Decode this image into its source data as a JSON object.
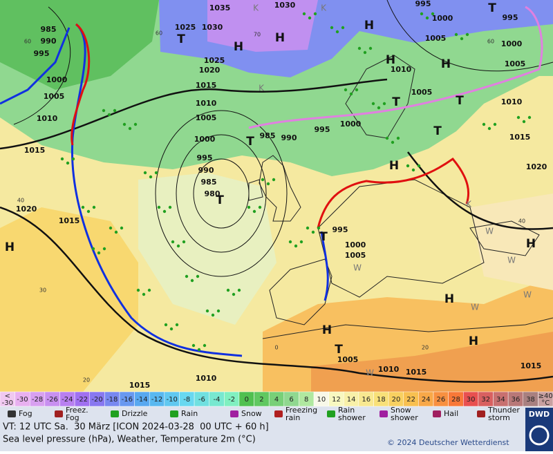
{
  "map": {
    "pressure_labels": [
      1035,
      1030,
      995,
      1025,
      1030,
      1000,
      995,
      985,
      990,
      995,
      1005,
      1000,
      1025,
      1020,
      1010,
      1005,
      1000,
      1015,
      1005,
      1005,
      1010,
      1010,
      1010,
      1005,
      995,
      1000,
      1015,
      985,
      990,
      1015,
      1000,
      995,
      1020,
      990,
      985,
      980,
      1020,
      1015,
      995,
      1000,
      1005,
      1005,
      1010,
      1015,
      1015,
      1015,
      1010
    ],
    "temperature_labels": [
      60,
      70,
      60,
      60,
      40,
      30,
      20,
      40,
      20,
      0
    ],
    "high_labels": [
      "H",
      "H",
      "H",
      "H",
      "H",
      "H",
      "H",
      "H",
      "H",
      "H",
      "H"
    ],
    "low_labels": [
      "T",
      "T",
      "T",
      "T",
      "T",
      "T",
      "T",
      "T",
      "T"
    ],
    "cold_labels": [
      "K",
      "K",
      "K",
      "K"
    ],
    "warm_labels": [
      "W",
      "W",
      "W",
      "W",
      "W",
      "W"
    ]
  },
  "color_scale": {
    "below": {
      "symbol": "<",
      "value": -30
    },
    "values": [
      -30,
      -28,
      -26,
      -24,
      -22,
      -20,
      -18,
      -16,
      -14,
      -12,
      -10,
      -8,
      -6,
      -4,
      -2,
      0,
      2,
      4,
      6,
      8,
      10,
      12,
      14,
      16,
      18,
      20,
      22,
      24,
      26,
      28,
      30,
      32,
      34,
      36,
      38
    ],
    "above": {
      "symbol": "≥40",
      "unit": "°C"
    },
    "colors": [
      "#f0c8f0",
      "#e8b0f0",
      "#d8a0f0",
      "#c890f0",
      "#b880f0",
      "#a070f0",
      "#8878f0",
      "#7888f0",
      "#6898f0",
      "#58a8f0",
      "#58b8f0",
      "#60c8f0",
      "#68d8f0",
      "#70e0e0",
      "#78e8d0",
      "#80f0c0",
      "#50c050",
      "#60c860",
      "#78d078",
      "#90d890",
      "#b0e8a0",
      "#f8f8e8",
      "#f8f8c0",
      "#f8f0a8",
      "#f8e890",
      "#f8e078",
      "#f8d060",
      "#f8c050",
      "#f8a848",
      "#f89040",
      "#f87838",
      "#e85050",
      "#d86060",
      "#c87070",
      "#b87878",
      "#a88080",
      "#c8a0a0"
    ]
  },
  "weather_legend": [
    [
      "Fog"
    ],
    [
      "Freez.",
      "Fog"
    ],
    [
      "Drizzle"
    ],
    [
      "Rain"
    ],
    [
      "Snow"
    ],
    [
      "Freezing",
      "rain"
    ],
    [
      "Rain",
      "shower"
    ],
    [
      "Snow",
      "shower"
    ],
    [
      "Hail"
    ],
    [
      "Thunder",
      "storm"
    ]
  ],
  "footer": {
    "valid_time": "VT: 12 UTC Sa.  30 März [ICON 2024-03-28  00 UTC + 60 h]",
    "subtitle": "Sea level pressure (hPa), Weather, Temperature 2m (°C)",
    "copyright": "© 2024 Deutscher Wetterdienst",
    "logo": "DWD"
  }
}
